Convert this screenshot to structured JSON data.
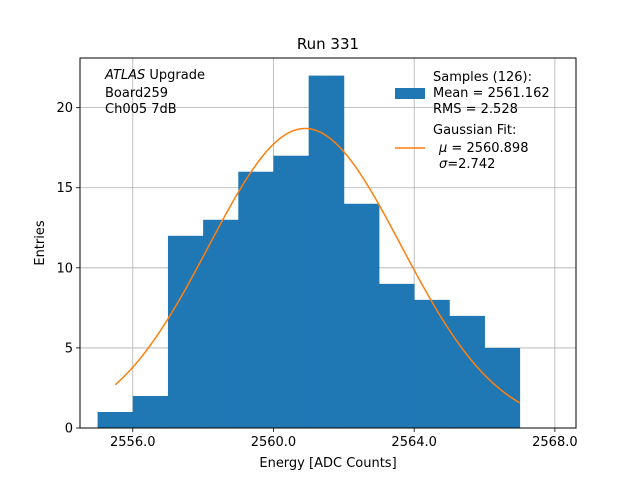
{
  "chart_data": {
    "type": "bar",
    "title": "Run 331",
    "xlabel": "Energy [ADC Counts]",
    "ylabel": "Entries",
    "xlim": [
      2554.5,
      2568.6
    ],
    "ylim": [
      0,
      23.1
    ],
    "xticks": [
      2556.0,
      2560.0,
      2564.0,
      2568.0
    ],
    "xtick_labels": [
      "2556.0",
      "2560.0",
      "2564.0",
      "2568.0"
    ],
    "yticks": [
      0,
      5,
      10,
      15,
      20
    ],
    "ytick_labels": [
      "0",
      "5",
      "10",
      "15",
      "20"
    ],
    "grid": true,
    "bin_edges": [
      2555.0,
      2556.0,
      2557.0,
      2558.0,
      2559.0,
      2560.0,
      2561.0,
      2562.0,
      2563.0,
      2564.0,
      2565.0,
      2566.0,
      2567.0
    ],
    "counts": [
      1,
      2,
      12,
      13,
      16,
      17,
      22,
      14,
      9,
      8,
      7,
      5
    ],
    "bar_color": "#1f77b4",
    "fit": {
      "name": "Gaussian Fit",
      "mu": 2560.898,
      "sigma": 2.742,
      "x_range": [
        2555.5,
        2567.0
      ],
      "peak": 18.7,
      "color": "#ff7f0e"
    },
    "annotation": {
      "italic": "ATLAS",
      "line1_rest": " Upgrade",
      "line2": " Board259",
      "line3": " Ch005 7dB"
    },
    "legend": {
      "position": "top-right",
      "samples_line1": "Samples (126):",
      "samples_line2": " Mean = 2561.162",
      "samples_line3": " RMS = 2.528",
      "fit_line1": "Gaussian Fit:",
      "fit_mu_symbol": "μ",
      "fit_mu_value": " = 2560.898",
      "fit_sigma_symbol": "σ",
      "fit_sigma_value": "=2.742"
    }
  }
}
